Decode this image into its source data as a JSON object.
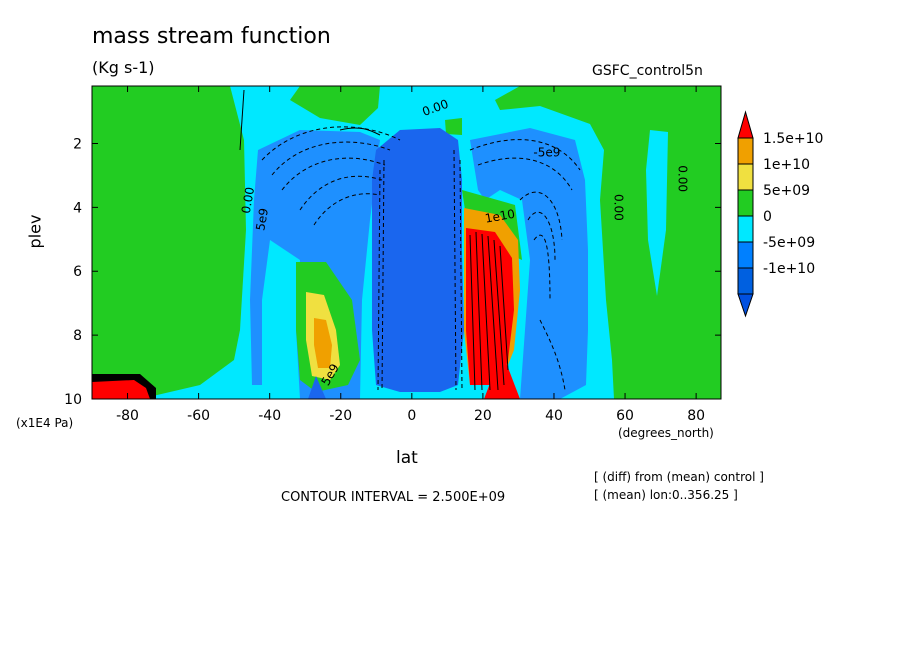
{
  "chart_data": {
    "type": "heatmap",
    "title": "mass stream function",
    "units": "(Kg s-1)",
    "run_label": "GSFC_control5n",
    "xlabel": "lat",
    "xunit": "(degrees_north)",
    "ylabel": "plev",
    "yunit": "(x1E4 Pa)",
    "xlim": [
      -90,
      87
    ],
    "ylim": [
      10,
      0.2
    ],
    "x_ticks": [
      -80,
      -60,
      -40,
      -20,
      0,
      20,
      40,
      60,
      80
    ],
    "x_tick_labels": [
      "-80",
      "-60",
      "-40",
      "-20",
      "0",
      "20",
      "40",
      "60",
      "80"
    ],
    "y_ticks": [
      2,
      4,
      6,
      8,
      10
    ],
    "y_tick_labels": [
      "2",
      "4",
      "6",
      "8",
      "10"
    ],
    "contour_interval": "CONTOUR INTERVAL = 2.500E+09",
    "annotations": [
      "[ (diff) from (mean) control ]",
      "[ (mean) lon:0..356.25 ]"
    ],
    "contour_labels": [
      "0.00",
      "0.00",
      "0.00",
      "0.00",
      "-5e9",
      "5e9",
      "5e9",
      "1e10"
    ],
    "legend": {
      "placement": "right",
      "levels": [
        {
          "label": "1.5e+10",
          "color": "#f0a000"
        },
        {
          "label": "1e+10",
          "color": "#f0e040"
        },
        {
          "label": "5e+09",
          "color": "#22cc22"
        },
        {
          "label": "0",
          "color": "#00e8ff"
        },
        {
          "label": "-5e+09",
          "color": "#0080ff"
        },
        {
          "label": "-1e+10",
          "color": "#0060e0"
        }
      ],
      "top_color": "#ff0000",
      "bottom_color": "#0050e0"
    },
    "colors": {
      "red": "#ff0000",
      "orange": "#f0a000",
      "yellow": "#f0e040",
      "green": "#22cc22",
      "cyan": "#00e8ff",
      "blue": "#1e90ff",
      "deep_blue": "#1a66ee"
    }
  }
}
